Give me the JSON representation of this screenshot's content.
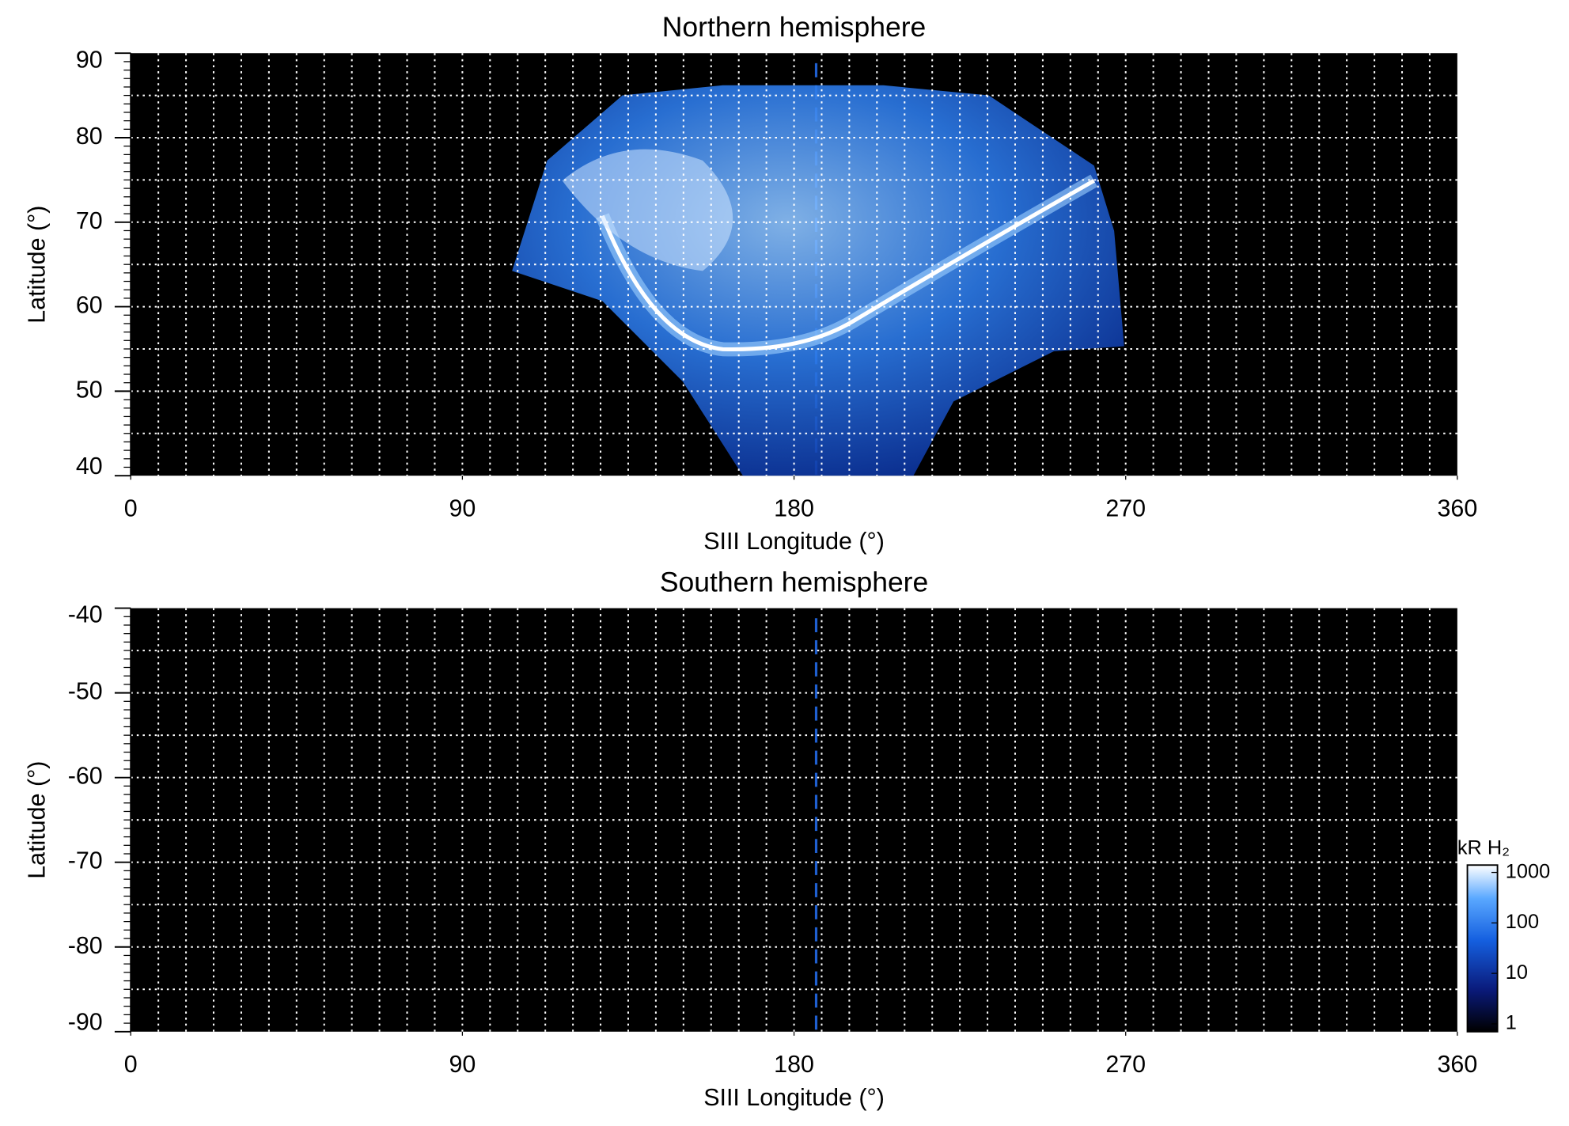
{
  "chart_data": [
    {
      "type": "map",
      "title": "Northern hemisphere",
      "x_label": "SIII Longitude (°)",
      "y_label": "Latitude (°)",
      "xlim": [
        0,
        360
      ],
      "xticks": [
        0,
        90,
        180,
        270,
        360
      ],
      "ylim": [
        40,
        90
      ],
      "yticks": [
        40,
        50,
        60,
        70,
        80,
        90
      ],
      "xgrid_step": 7.5,
      "ygrid_step": 5,
      "reference_x": 186,
      "reference_color": "#1f5fd0"
    },
    {
      "type": "map",
      "title": "Southern hemisphere",
      "x_label": "SIII Longitude (°)",
      "y_label": "Latitude (°)",
      "xlim": [
        0,
        360
      ],
      "xticks": [
        0,
        90,
        180,
        270,
        360
      ],
      "ylim": [
        -90,
        -40
      ],
      "yticks": [
        -90,
        -80,
        -70,
        -60,
        -50,
        -40
      ],
      "xgrid_step": 7.5,
      "ygrid_step": 5,
      "reference_x": 186,
      "reference_color": "#1f5fd0",
      "colorbar": {
        "label": "kR H₂",
        "lim": [
          0.7,
          1400
        ],
        "log": true,
        "ticks": [
          1,
          10,
          100,
          1000
        ]
      }
    }
  ]
}
